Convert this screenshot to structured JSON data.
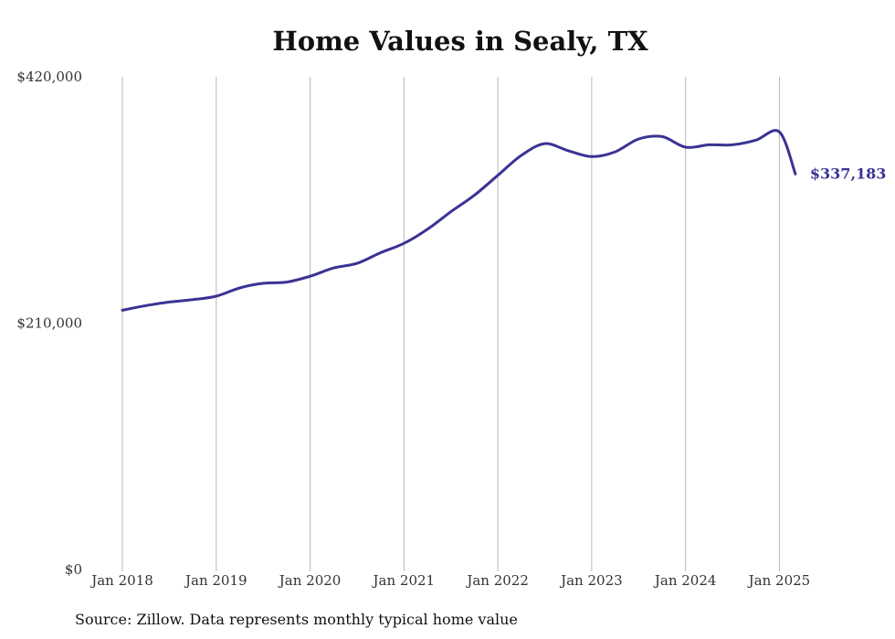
{
  "chart_data": {
    "type": "line",
    "title": "Home Values in Sealy, TX",
    "source": "Source: Zillow. Data represents monthly typical home value",
    "xlabel": "",
    "ylabel": "",
    "xlim": [
      2018.0,
      2025.2
    ],
    "ylim": [
      0,
      420000
    ],
    "yticks": [
      0,
      210000,
      420000
    ],
    "ytick_labels": [
      "$0",
      "$210,000",
      "$420,000"
    ],
    "xticks": [
      2018,
      2019,
      2020,
      2021,
      2022,
      2023,
      2024,
      2025
    ],
    "xtick_labels": [
      "Jan 2018",
      "Jan 2019",
      "Jan 2020",
      "Jan 2021",
      "Jan 2022",
      "Jan 2023",
      "Jan 2024",
      "Jan 2025"
    ],
    "grid": "vertical",
    "end_label": "$337,183",
    "series": [
      {
        "color": "#3a3394",
        "x": [
          2018.0,
          2018.25,
          2018.5,
          2018.75,
          2019.0,
          2019.25,
          2019.5,
          2019.75,
          2020.0,
          2020.25,
          2020.5,
          2020.75,
          2021.0,
          2021.25,
          2021.5,
          2021.75,
          2022.0,
          2022.25,
          2022.5,
          2022.75,
          2023.0,
          2023.25,
          2023.5,
          2023.75,
          2024.0,
          2024.25,
          2024.5,
          2024.75,
          2025.0,
          2025.17
        ],
        "y": [
          221000,
          225000,
          228000,
          230000,
          233000,
          240000,
          244000,
          245000,
          250000,
          257000,
          261000,
          270000,
          278000,
          290000,
          305000,
          319000,
          336000,
          353000,
          363000,
          357000,
          352000,
          356000,
          367000,
          369000,
          360000,
          362000,
          362000,
          366000,
          373000,
          337183
        ]
      }
    ]
  }
}
